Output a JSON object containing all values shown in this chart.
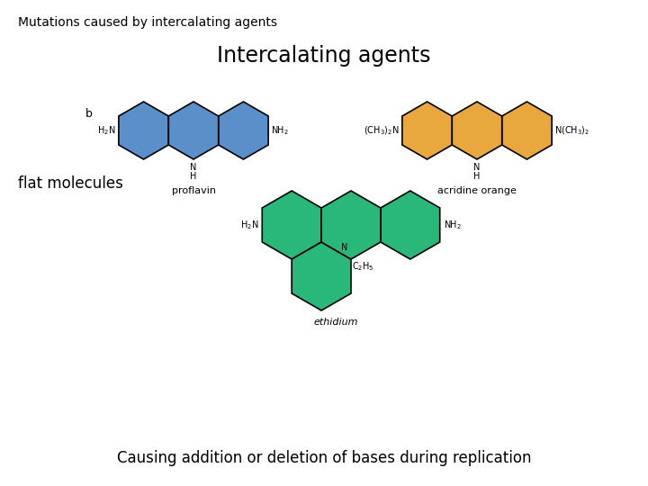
{
  "title_top": "Mutations caused by intercalating agents",
  "title_main": "Intercalating agents",
  "label_b": "b",
  "label_flat": "flat molecules",
  "label_bottom": "Causing addition or deletion of bases during replication",
  "label_ethidium": "ethidium",
  "label_proflavin": "proflavin",
  "label_acridine": "acridine orange",
  "color_green": "#2ab87a",
  "color_blue": "#5b8fc9",
  "color_orange": "#e8a83e",
  "bg_color": "#ffffff",
  "hex_lw": 1.2
}
